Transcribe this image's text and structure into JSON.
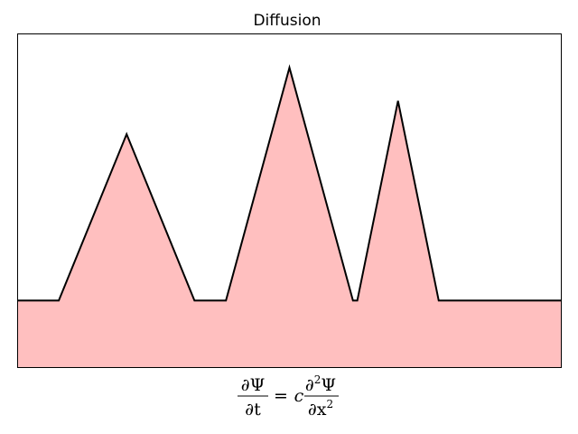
{
  "chart_data": {
    "type": "area",
    "title": "Diffusion",
    "xlabel": "",
    "ylabel": "",
    "xlim": [
      0,
      1
    ],
    "ylim": [
      0,
      1
    ],
    "grid": false,
    "ticks": false,
    "fill_color": "#ffbfbf",
    "line_color": "#000000",
    "series": [
      {
        "x": [
          0.0,
          0.075,
          0.2,
          0.325,
          0.383,
          0.5,
          0.617,
          0.625,
          0.7,
          0.775,
          1.0
        ],
        "y": [
          0.2,
          0.2,
          0.7,
          0.2,
          0.2,
          0.9,
          0.2,
          0.2,
          0.8,
          0.2,
          0.2
        ]
      }
    ],
    "equation": {
      "lhs_num": "∂Ψ",
      "lhs_den": "∂t",
      "equals": "=",
      "coef": "c",
      "rhs_num": "∂",
      "rhs_num_sup": "2",
      "rhs_num_tail": "Ψ",
      "rhs_den": "∂x",
      "rhs_den_sup": "2"
    }
  }
}
